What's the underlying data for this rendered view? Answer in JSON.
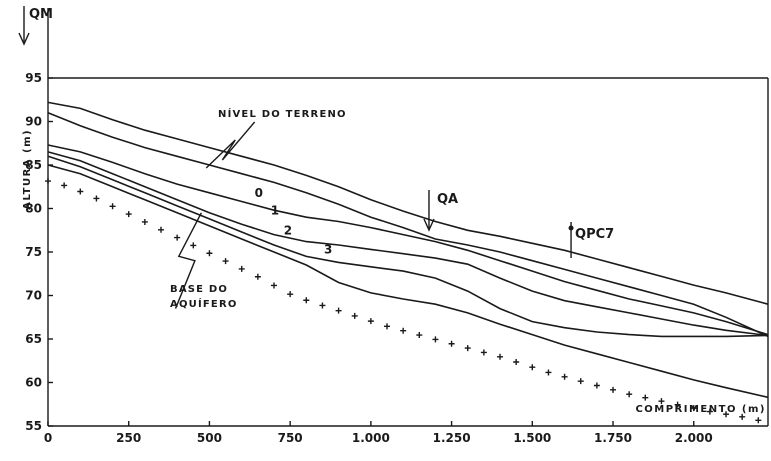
{
  "chart_data": {
    "type": "line",
    "title": "",
    "xlabel": "COMPRIMENTO (m)",
    "ylabel": "ALTURA (m)",
    "xlim": [
      0,
      2230
    ],
    "ylim": [
      55,
      95
    ],
    "x_ticks": [
      0,
      250,
      500,
      750,
      1000,
      1250,
      1500,
      1750,
      2000
    ],
    "x_tick_labels": [
      "0",
      "250",
      "500",
      "750",
      "1.000",
      "1.250",
      "1.500",
      "1.750",
      "2.000"
    ],
    "y_ticks": [
      55,
      60,
      65,
      70,
      75,
      80,
      85,
      90,
      95
    ],
    "y_tick_labels": [
      "55",
      "60",
      "65",
      "70",
      "75",
      "80",
      "85",
      "90",
      "95"
    ],
    "grid": false,
    "series": [
      {
        "name": "NÍVEL DO TERRENO",
        "x": [
          0,
          100,
          200,
          300,
          400,
          500,
          600,
          700,
          800,
          900,
          1000,
          1100,
          1200,
          1300,
          1400,
          1500,
          1600,
          1700,
          1800,
          1900,
          2000,
          2100,
          2230
        ],
        "y": [
          92.2,
          91.5,
          90.2,
          89.0,
          88.0,
          87.0,
          86.0,
          85.0,
          83.8,
          82.5,
          81.0,
          79.7,
          78.5,
          77.5,
          76.8,
          76.0,
          75.2,
          74.2,
          73.2,
          72.2,
          71.2,
          70.3,
          69.0
        ]
      },
      {
        "name": "0",
        "x": [
          0,
          100,
          200,
          300,
          400,
          500,
          600,
          700,
          800,
          900,
          1000,
          1100,
          1200,
          1300,
          1400,
          1500,
          1600,
          1700,
          1800,
          1900,
          2000,
          2100,
          2230
        ],
        "y": [
          91.0,
          89.5,
          88.2,
          87.0,
          86.0,
          85.0,
          84.0,
          83.0,
          81.8,
          80.5,
          79.0,
          77.8,
          76.5,
          75.8,
          75.0,
          74.0,
          73.0,
          72.0,
          71.0,
          70.0,
          69.0,
          67.5,
          65.3
        ]
      },
      {
        "name": "1",
        "x": [
          0,
          100,
          200,
          300,
          400,
          500,
          600,
          700,
          800,
          900,
          1000,
          1100,
          1200,
          1300,
          1400,
          1500,
          1600,
          1700,
          1800,
          1900,
          2000,
          2100,
          2230
        ],
        "y": [
          87.3,
          86.5,
          85.3,
          84.0,
          82.8,
          81.8,
          80.8,
          79.8,
          79.0,
          78.5,
          77.8,
          77.0,
          76.2,
          75.2,
          74.0,
          72.8,
          71.6,
          70.6,
          69.6,
          68.8,
          68.0,
          67.0,
          65.5
        ]
      },
      {
        "name": "2",
        "x": [
          0,
          100,
          200,
          300,
          400,
          500,
          600,
          700,
          800,
          900,
          1000,
          1100,
          1200,
          1300,
          1400,
          1500,
          1600,
          1700,
          1800,
          1900,
          2000,
          2100,
          2230
        ],
        "y": [
          86.5,
          85.5,
          84.0,
          82.5,
          81.0,
          79.5,
          78.2,
          77.0,
          76.2,
          75.8,
          75.3,
          74.8,
          74.3,
          73.6,
          72.0,
          70.5,
          69.4,
          68.7,
          68.0,
          67.3,
          66.6,
          66.0,
          65.4
        ]
      },
      {
        "name": "3",
        "x": [
          0,
          100,
          200,
          300,
          400,
          500,
          600,
          700,
          800,
          900,
          1000,
          1100,
          1200,
          1300,
          1400,
          1500,
          1600,
          1700,
          1800,
          1900,
          2000,
          2100,
          2230
        ],
        "y": [
          86.0,
          84.8,
          83.3,
          81.8,
          80.3,
          78.8,
          77.3,
          75.8,
          74.5,
          73.8,
          73.3,
          72.8,
          72.0,
          70.5,
          68.5,
          67.0,
          66.3,
          65.8,
          65.5,
          65.3,
          65.3,
          65.3,
          65.4
        ]
      },
      {
        "name": "BASE DO AQUÍFERO",
        "x": [
          0,
          100,
          200,
          300,
          400,
          500,
          600,
          700,
          800,
          900,
          1000,
          1100,
          1200,
          1300,
          1400,
          1500,
          1600,
          1700,
          1800,
          1900,
          2000,
          2100,
          2230
        ],
        "y": [
          85.0,
          84.0,
          82.5,
          81.0,
          79.5,
          78.0,
          76.5,
          75.0,
          73.5,
          71.5,
          70.3,
          69.6,
          69.0,
          68.0,
          66.7,
          65.5,
          64.3,
          63.3,
          62.3,
          61.3,
          60.3,
          59.4,
          58.3
        ]
      }
    ],
    "bedrock_points": {
      "x": [
        0,
        50,
        100,
        150,
        200,
        250,
        300,
        350,
        400,
        450,
        500,
        550,
        600,
        650,
        700,
        750,
        800,
        850,
        900,
        950,
        1000,
        1050,
        1100,
        1150,
        1200,
        1250,
        1300,
        1350,
        1400,
        1450,
        1500,
        1550,
        1600,
        1650,
        1700,
        1750,
        1800,
        1850,
        1900,
        1950,
        2000,
        2050,
        2100,
        2150,
        2200
      ],
      "y": [
        83.5,
        83.0,
        82.3,
        81.5,
        80.6,
        79.7,
        78.8,
        77.9,
        77.0,
        76.1,
        75.2,
        74.3,
        73.4,
        72.5,
        71.5,
        70.5,
        69.8,
        69.2,
        68.6,
        68.0,
        67.4,
        66.8,
        66.3,
        65.8,
        65.3,
        64.8,
        64.3,
        63.8,
        63.3,
        62.7,
        62.1,
        61.5,
        61.0,
        60.5,
        60.0,
        59.5,
        59.0,
        58.6,
        58.2,
        57.8,
        57.4,
        57.0,
        56.7,
        56.4,
        56.0
      ]
    },
    "annotations": [
      {
        "text": "QM",
        "x": 0,
        "y": 97.5
      },
      {
        "text": "QA",
        "x": 1190,
        "y": 77.0
      },
      {
        "text": "QPC7",
        "x": 1620,
        "y": 73.8
      }
    ],
    "curve_labels": [
      "0",
      "1",
      "2",
      "3"
    ],
    "labels": {
      "terrain": "NÍVEL DO TERRENO",
      "base_line1": "BASE DO",
      "base_line2": "AQUÍFERO"
    },
    "legend": "none"
  }
}
